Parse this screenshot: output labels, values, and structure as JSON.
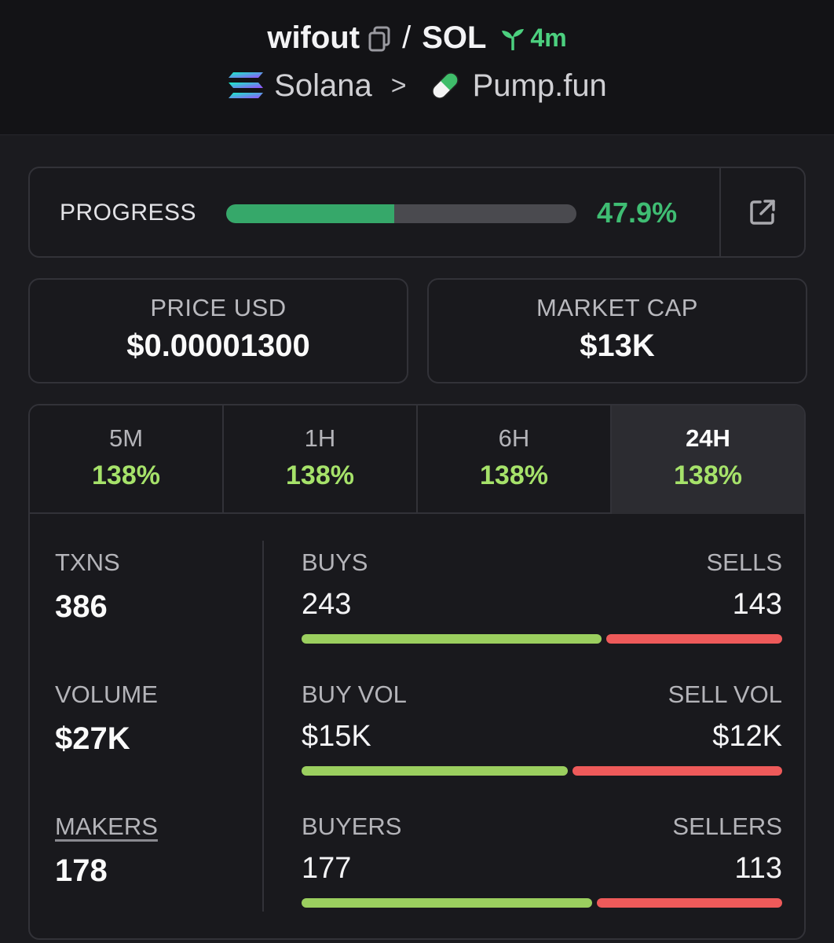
{
  "header": {
    "token": "wifout",
    "separator": "/",
    "pair": "SOL",
    "age": "4m",
    "chain": "Solana",
    "chevron": ">",
    "dex": "Pump.fun"
  },
  "progress": {
    "label": "PROGRESS",
    "percent_text": "47.9%",
    "percent": 47.9
  },
  "price": {
    "label": "PRICE USD",
    "value": "$0.00001300"
  },
  "market_cap": {
    "label": "MARKET CAP",
    "value": "$13K"
  },
  "tabs": [
    {
      "label": "5M",
      "change": "138%"
    },
    {
      "label": "1H",
      "change": "138%"
    },
    {
      "label": "6H",
      "change": "138%"
    },
    {
      "label": "24H",
      "change": "138%",
      "active": true
    }
  ],
  "stats": {
    "txns": {
      "label": "TXNS",
      "value": "386"
    },
    "volume": {
      "label": "VOLUME",
      "value": "$27K"
    },
    "makers": {
      "label": "MAKERS",
      "value": "178"
    }
  },
  "breakdown": {
    "txns": {
      "left_label": "BUYS",
      "right_label": "SELLS",
      "left_value": "243",
      "right_value": "143",
      "left_share": 0.63
    },
    "volume": {
      "left_label": "BUY VOL",
      "right_label": "SELL VOL",
      "left_value": "$15K",
      "right_value": "$12K",
      "left_share": 0.56
    },
    "makers": {
      "left_label": "BUYERS",
      "right_label": "SELLERS",
      "left_value": "177",
      "right_value": "113",
      "left_share": 0.61
    }
  },
  "colors": {
    "accent_green": "#3fbd73",
    "change_green": "#a6e26a",
    "buy_bar": "#9bcf5f",
    "sell_bar": "#ee5a5a"
  }
}
